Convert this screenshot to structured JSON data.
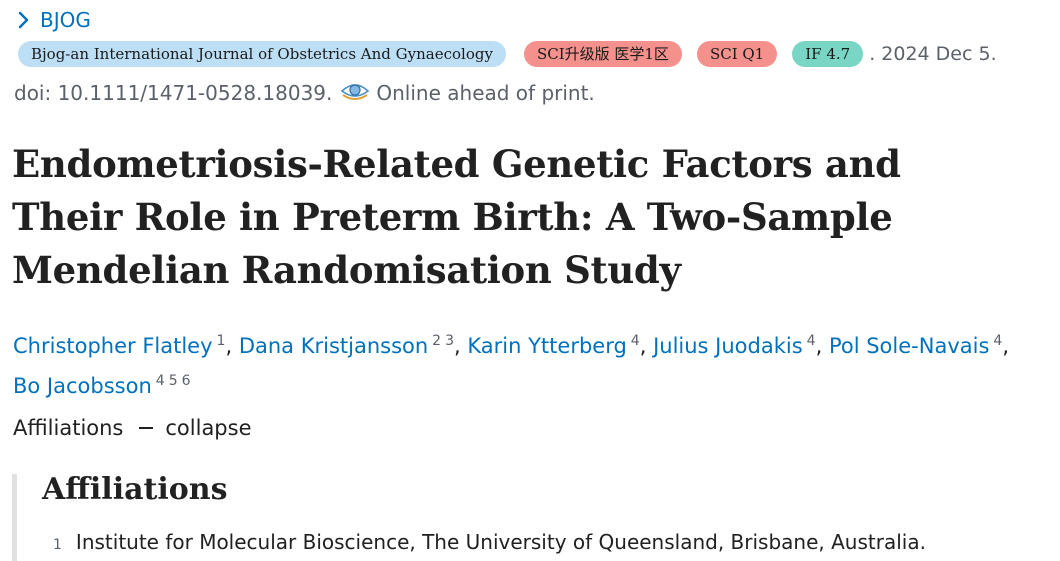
{
  "journal": {
    "name": "BJOG",
    "icon": "chevron-right-icon"
  },
  "meta": {
    "journal_full": "Bjog-an International Journal of Obstetrics And Gynaecology",
    "badge_sci_upgrade": "SCI升级版 医学1区",
    "badge_sci_q": "SCI Q1",
    "badge_if": "IF 4.7",
    "date": ". 2024 Dec 5."
  },
  "doi": {
    "text": "doi: 10.1111/1471-0528.18039.",
    "status": "Online ahead of print.",
    "icon": "eye-icon"
  },
  "article": {
    "title": "Endometriosis-Related Genetic Factors and Their Role in Preterm Birth: A Two-Sample Mendelian Randomisation Study"
  },
  "authors": [
    {
      "name": "Christopher Flatley",
      "affiliations": [
        "1"
      ]
    },
    {
      "name": "Dana Kristjansson",
      "affiliations": [
        "2",
        "3"
      ]
    },
    {
      "name": "Karin Ytterberg",
      "affiliations": [
        "4"
      ]
    },
    {
      "name": "Julius Juodakis",
      "affiliations": [
        "4"
      ]
    },
    {
      "name": "Pol Sole-Navais",
      "affiliations": [
        "4"
      ]
    },
    {
      "name": "Bo Jacobsson",
      "affiliations": [
        "4",
        "5",
        "6"
      ]
    }
  ],
  "affiliations_toggle": {
    "label": "Affiliations",
    "action": "collapse"
  },
  "affiliations_panel": {
    "heading": "Affiliations",
    "items": [
      {
        "number": "1",
        "text": "Institute for Molecular Bioscience, The University of Queensland, Brisbane, Australia."
      }
    ]
  },
  "colors": {
    "link": "#0071bc",
    "badge_journal": "#bcdff5",
    "badge_red": "#f4918d",
    "badge_teal": "#7ad6c4"
  }
}
